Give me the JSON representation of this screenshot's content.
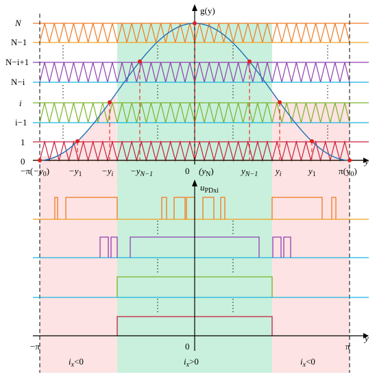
{
  "level_labels": {
    "N": "N",
    "N_minus_1": "N−1",
    "N_minus_i_plus_1": "N−i+1",
    "N_minus_i": "N−i",
    "i": "i",
    "i_minus_1": "i−1",
    "one": "1",
    "zero": "0"
  },
  "top_axis": {
    "y_axis_label": "g(y)",
    "x_axis_label": "y",
    "ticks": {
      "neg_pi": "−π(",
      "neg_pi_y": "−y",
      "neg_pi_sub": "0",
      "neg_pi_close": ")",
      "neg_y1": "−y",
      "neg_y1_sub": "1",
      "neg_yi": "−y",
      "neg_yi_sub": "i",
      "neg_yN1": "−y",
      "neg_yN1_sub": "N−1",
      "zero": "0",
      "yN_open": "(y",
      "yN_sub": "N",
      "yN_close": ")",
      "yN1": "y",
      "yN1_sub": "N−1",
      "yi": "y",
      "yi_sub": "i",
      "y1": "y",
      "y1_sub": "1",
      "pi": "π(y",
      "pi_sub": "0",
      "pi_close": ")"
    }
  },
  "bottom_axis": {
    "y_axis_label": "u",
    "y_axis_sub": "PDxi",
    "x_axis_label": "y",
    "ticks": {
      "neg_pi": "−π",
      "zero": "0",
      "pi": "π"
    }
  },
  "regions": {
    "left": "i",
    "left_sub": "x",
    "left_rel": "<0",
    "center": "i",
    "center_sub": "x",
    "center_rel": ">0",
    "right": "i",
    "right_sub": "x",
    "right_rel": "<0"
  },
  "colors": {
    "pink_region": "#fde3e3",
    "green_region": "#c9f0dc",
    "curve": "#1f6fb5",
    "red_points": "#e0201b",
    "carrier_N": "#f07820",
    "carrier_N1": "#f0a020",
    "carrier_Ni1": "#8e3fb0",
    "carrier_Ni": "#19b4e0",
    "carrier_i": "#78b428",
    "carrier_i1": "#19b4e0",
    "carrier_1": "#c81e3c",
    "carrier_0": "#f07820"
  }
}
